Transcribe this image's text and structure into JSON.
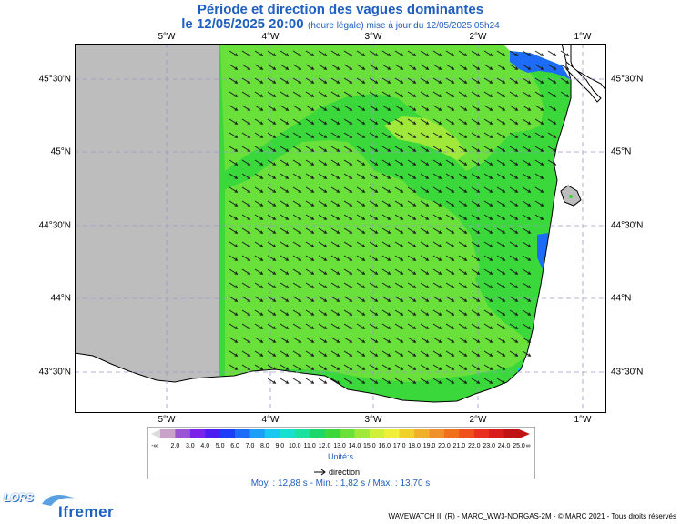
{
  "header": {
    "title": "Période et direction des vagues dominantes",
    "date": "le 12/05/2025 20:00",
    "note": "(heure légale) mise à jour du 12/05/2025 05h24"
  },
  "axes": {
    "lon_labels": [
      "5°W",
      "4°W",
      "3°W",
      "2°W",
      "1°W"
    ],
    "lat_labels": [
      "45°30'N",
      "45°N",
      "44°30'N",
      "44°N",
      "43°30'N"
    ]
  },
  "legend": {
    "labels": [
      "-∞",
      "2,0",
      "3,0",
      "4,0",
      "5,0",
      "6,0",
      "7,0",
      "8,0",
      "9,0",
      "10,0",
      "11,0",
      "12,0",
      "13,0",
      "14,0",
      "15,0",
      "16,0",
      "17,0",
      "18,0",
      "19,0",
      "20,0",
      "21,0",
      "22,0",
      "23,0",
      "24,0",
      "25,0",
      "∞"
    ],
    "colors": [
      "#c8a2c8",
      "#9a55d6",
      "#7a22ea",
      "#4a1cf2",
      "#1c3cf7",
      "#1c6cf7",
      "#1ca0f7",
      "#18c8f0",
      "#18e0d0",
      "#1ce0a0",
      "#1cd86a",
      "#3ad83a",
      "#6ae03a",
      "#a0e83a",
      "#d0f03a",
      "#f0f03a",
      "#f0d02a",
      "#f0b02a",
      "#f0902a",
      "#f0701c",
      "#f0501c",
      "#e8301c",
      "#d81c1c",
      "#c01414"
    ],
    "units": "Unité:s",
    "direction_label": "direction",
    "stats": "Moy. : 12,88 s   -   Min. : 1,82 s / Max. : 13,70 s"
  },
  "logos": {
    "lops": "LOPS",
    "ifremer": "Ifremer"
  },
  "credits": "WAVEWATCH III (R) - MARC_WW3-NORGAS-2M - © MARC 2021 - Tous droits réservés",
  "map_colors": {
    "no_data": "#bdbdbd",
    "land": "#ffffff",
    "period_12": "#3ad83a",
    "period_13": "#6ae03a",
    "period_14": "#a0e83a",
    "short_period": "#1c6cf7",
    "frame": "#000000",
    "grid": "#9a9ac8"
  }
}
